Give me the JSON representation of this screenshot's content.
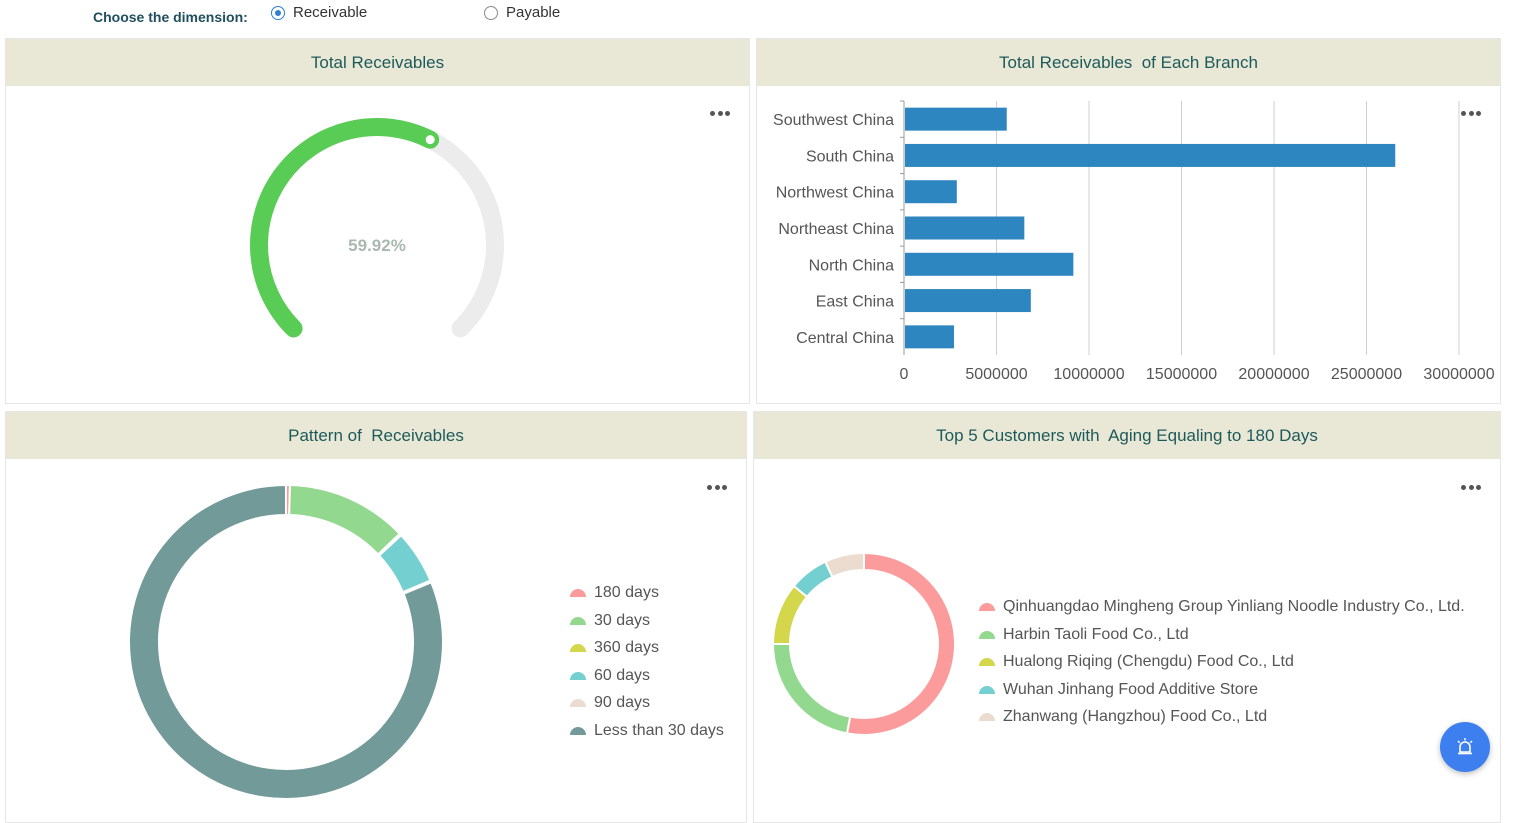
{
  "dimension": {
    "label": "Choose the dimension:",
    "options": [
      {
        "label": "Receivable",
        "checked": true
      },
      {
        "label": "Payable",
        "checked": false
      }
    ]
  },
  "panels": {
    "total": {
      "title": "Total Receivables"
    },
    "branch": {
      "title": "Total Receivables  of Each Branch"
    },
    "pattern": {
      "title": "Pattern of  Receivables"
    },
    "top5": {
      "title": "Top 5 Customers with  Aging Equaling to 180 Days"
    }
  },
  "chart_data": [
    {
      "type": "gauge",
      "title": "Total Receivables",
      "value": 59.92,
      "display": "59.92%",
      "colors": {
        "progress": "#59cc55",
        "track": "#ececec",
        "label": "#aab8b0"
      }
    },
    {
      "type": "bar",
      "orientation": "horizontal",
      "title": "Total Receivables  of Each Branch",
      "categories": [
        "Southwest China",
        "South China",
        "Northwest China",
        "Northeast China",
        "North China",
        "East China",
        "Central China"
      ],
      "values": [
        5500000,
        26500000,
        2800000,
        6450000,
        9100000,
        6800000,
        2650000
      ],
      "xlim": [
        0,
        30000000
      ],
      "xticks": [
        "0",
        "5000000",
        "10000000",
        "15000000",
        "20000000",
        "25000000",
        "30000000"
      ],
      "grid": true,
      "color": "#2e86c1"
    },
    {
      "type": "pie",
      "style": "donut",
      "title": "Pattern of  Receivables",
      "labels": [
        "180 days",
        "30 days",
        "360 days",
        "60 days",
        "90 days",
        "Less than 30 days"
      ],
      "values": [
        0.4,
        12.5,
        0.2,
        5.5,
        0.2,
        81.2
      ],
      "colors": [
        "#fb9b9b",
        "#92d88f",
        "#d4d64c",
        "#74d0d0",
        "#ecdcd0",
        "#729a99"
      ],
      "legend": "right"
    },
    {
      "type": "pie",
      "style": "donut",
      "title": "Top 5 Customers with  Aging Equaling to 180 Days",
      "labels": [
        "Qinhuangdao Mingheng Group Yinliang Noodle Industry Co., Ltd.",
        "Harbin Taoli Food Co., Ltd",
        "Hualong Riqing (Chengdu) Food Co., Ltd",
        "Wuhan Jinhang Food Additive Store",
        "Zhanwang (Hangzhou) Food Co., Ltd"
      ],
      "values": [
        53,
        22,
        11,
        7,
        7
      ],
      "colors": [
        "#fb9b9b",
        "#92d88f",
        "#d4d64c",
        "#74d0d0",
        "#ecdcd0"
      ],
      "legend": "right"
    }
  ]
}
